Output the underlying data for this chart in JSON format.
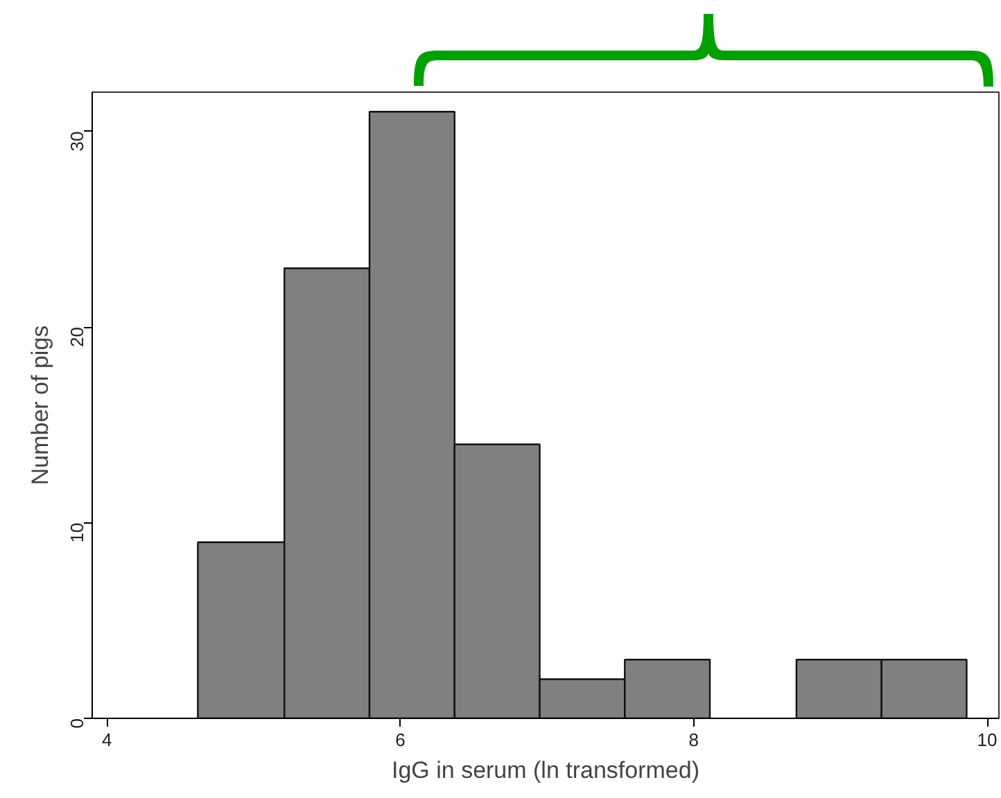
{
  "chart_data": {
    "type": "histogram",
    "xlabel": "IgG in serum (ln transformed)",
    "ylabel": "Number of pigs",
    "bins": [
      4.62,
      5.21,
      5.79,
      6.37,
      6.95,
      7.53,
      8.11,
      8.7,
      9.28,
      9.86
    ],
    "values": [
      9,
      23,
      31,
      14,
      2,
      3,
      0,
      3,
      3
    ],
    "color": "#808080",
    "xlim": [
      3.9,
      10.08
    ],
    "ylim": [
      0,
      32
    ],
    "xticks": [
      4,
      6,
      8,
      10
    ],
    "yticks": [
      0,
      10,
      20,
      30
    ],
    "grid": false
  }
}
